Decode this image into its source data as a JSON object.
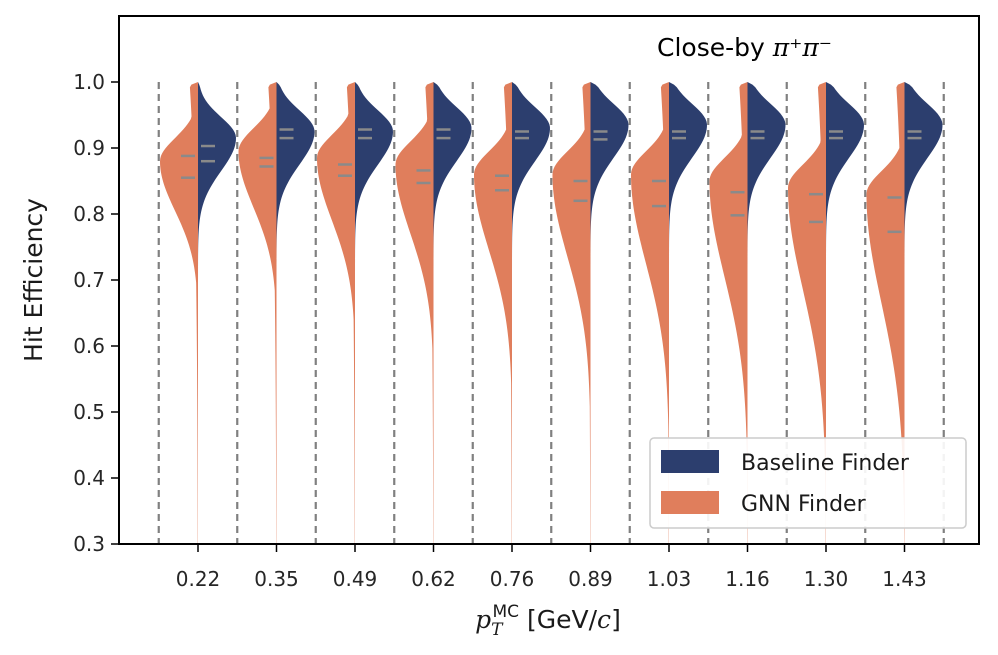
{
  "chart_data": {
    "type": "violin",
    "annotation": {
      "prefix": "Close-by ",
      "math": "π⁺π⁻"
    },
    "xlabel": {
      "base": "p",
      "sub": "T",
      "sup": "MC",
      "unit": " [GeV/",
      "unit_italic": "c",
      "unit_end": "]"
    },
    "ylabel": "Hit Efficiency",
    "ylim": [
      0.3,
      1.1
    ],
    "yticks": [
      "0.3",
      "0.4",
      "0.5",
      "0.6",
      "0.7",
      "0.8",
      "0.9",
      "1.0"
    ],
    "categories": [
      "0.22",
      "0.35",
      "0.49",
      "0.62",
      "0.76",
      "0.89",
      "1.03",
      "1.16",
      "1.30",
      "1.43"
    ],
    "legend_position": "lower-right",
    "colors": {
      "baseline": "#2c3e6e",
      "gnn": "#e07e5c",
      "quartile": "#8a8a8a",
      "separator": "#808080"
    },
    "series": [
      {
        "name": "Baseline Finder",
        "side": "right",
        "mode": [
          0.915,
          0.925,
          0.925,
          0.93,
          0.93,
          0.935,
          0.935,
          0.935,
          0.935,
          0.935
        ],
        "quartiles": [
          [
            0.88,
            0.903
          ],
          [
            0.915,
            0.928
          ],
          [
            0.915,
            0.928
          ],
          [
            0.915,
            0.928
          ],
          [
            0.915,
            0.925
          ],
          [
            0.913,
            0.925
          ],
          [
            0.915,
            0.925
          ],
          [
            0.915,
            0.925
          ],
          [
            0.915,
            0.925
          ],
          [
            0.915,
            0.925
          ]
        ]
      },
      {
        "name": "GNN Finder",
        "side": "left",
        "mode": [
          0.88,
          0.895,
          0.885,
          0.875,
          0.86,
          0.86,
          0.86,
          0.85,
          0.84,
          0.83
        ],
        "quartiles": [
          [
            0.855,
            0.888
          ],
          [
            0.872,
            0.885
          ],
          [
            0.858,
            0.875
          ],
          [
            0.847,
            0.866
          ],
          [
            0.836,
            0.858
          ],
          [
            0.82,
            0.85
          ],
          [
            0.812,
            0.85
          ],
          [
            0.798,
            0.833
          ],
          [
            0.788,
            0.83
          ],
          [
            0.773,
            0.825
          ]
        ]
      }
    ]
  }
}
